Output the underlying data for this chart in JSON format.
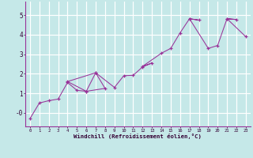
{
  "xlabel": "Windchill (Refroidissement éolien,°C)",
  "bg_color": "#c5e8e8",
  "grid_color": "#ffffff",
  "line_color": "#993399",
  "xlim": [
    -0.5,
    23.5
  ],
  "ylim": [
    -0.7,
    5.7
  ],
  "ytick_vals": [
    0,
    1,
    2,
    3,
    4,
    5
  ],
  "ytick_labels": [
    "-0",
    "1",
    "2",
    "3",
    "4",
    "5"
  ],
  "xtick_vals": [
    0,
    1,
    2,
    3,
    4,
    5,
    6,
    7,
    8,
    9,
    10,
    11,
    12,
    13,
    14,
    15,
    16,
    17,
    18,
    19,
    20,
    21,
    22,
    23
  ],
  "series_time_order": [
    [
      0,
      -0.3
    ],
    [
      1,
      0.5
    ],
    [
      2,
      0.62
    ],
    [
      3,
      0.7
    ],
    [
      4,
      1.55
    ],
    [
      5,
      1.15
    ],
    [
      6,
      1.1
    ],
    [
      4,
      1.6
    ],
    [
      7,
      2.05
    ],
    [
      8,
      1.25
    ],
    [
      6,
      1.1
    ],
    [
      7,
      2.05
    ],
    [
      9,
      1.3
    ],
    [
      10,
      1.9
    ],
    [
      11,
      1.92
    ],
    [
      12,
      2.35
    ],
    [
      13,
      2.55
    ],
    [
      12,
      2.38
    ],
    [
      14,
      3.05
    ],
    [
      15,
      3.3
    ],
    [
      16,
      4.1
    ],
    [
      17,
      4.82
    ],
    [
      18,
      4.75
    ],
    [
      17,
      4.82
    ],
    [
      19,
      3.3
    ],
    [
      20,
      3.45
    ],
    [
      21,
      4.82
    ],
    [
      22,
      4.78
    ],
    [
      21,
      4.82
    ],
    [
      23,
      3.9
    ]
  ]
}
